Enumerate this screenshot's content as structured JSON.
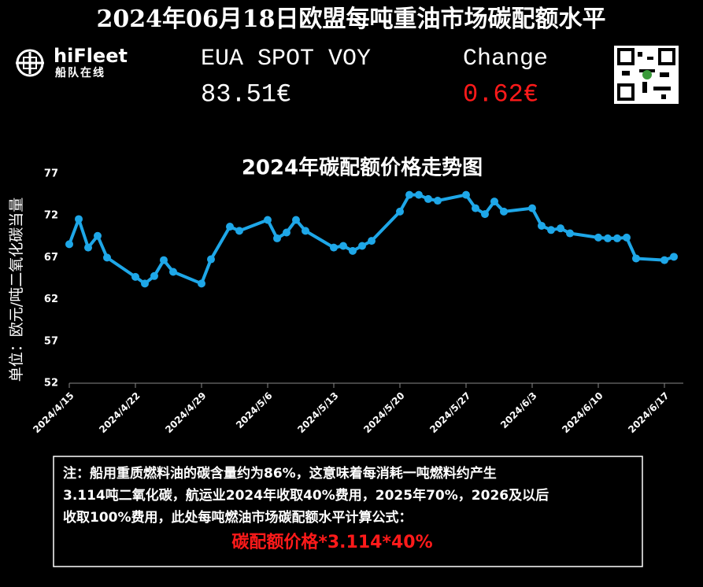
{
  "header": {
    "title": "2024年06月18日欧盟每吨重油市场碳配额水平",
    "logo_name": "hiFleet",
    "logo_sub": "船队在线",
    "price_label": "EUA SPOT VOY",
    "price": "83.51€",
    "change_label": "Change",
    "change": "0.62€"
  },
  "chart_data": {
    "type": "line",
    "title": "2024年碳配额价格走势图",
    "y_label": "单位：欧元/吨二氧化碳当量",
    "x": [
      "2024-04-15",
      "2024-04-16",
      "2024-04-17",
      "2024-04-18",
      "2024-04-19",
      "2024-04-22",
      "2024-04-23",
      "2024-04-24",
      "2024-04-25",
      "2024-04-26",
      "2024-04-29",
      "2024-04-30",
      "2024-05-02",
      "2024-05-03",
      "2024-05-06",
      "2024-05-07",
      "2024-05-08",
      "2024-05-09",
      "2024-05-10",
      "2024-05-13",
      "2024-05-14",
      "2024-05-15",
      "2024-05-16",
      "2024-05-17",
      "2024-05-20",
      "2024-05-21",
      "2024-05-22",
      "2024-05-23",
      "2024-05-24",
      "2024-05-27",
      "2024-05-28",
      "2024-05-29",
      "2024-05-30",
      "2024-05-31",
      "2024-06-03",
      "2024-06-04",
      "2024-06-05",
      "2024-06-06",
      "2024-06-07",
      "2024-06-10",
      "2024-06-11",
      "2024-06-12",
      "2024-06-13",
      "2024-06-14",
      "2024-06-17",
      "2024-06-18"
    ],
    "values": [
      68.6,
      71.6,
      68.2,
      69.6,
      67.0,
      64.7,
      63.9,
      64.8,
      66.7,
      65.3,
      63.9,
      66.8,
      70.7,
      70.2,
      71.5,
      69.3,
      70.0,
      71.5,
      70.2,
      68.2,
      68.4,
      67.8,
      68.4,
      69.0,
      72.5,
      74.5,
      74.5,
      74.0,
      73.8,
      74.5,
      72.9,
      72.2,
      73.7,
      72.5,
      72.9,
      70.8,
      70.3,
      70.5,
      69.9,
      69.4,
      69.3,
      69.3,
      69.4,
      66.9,
      66.7,
      67.1
    ],
    "color": "#1ea7e8",
    "xlim": [
      "2024-04-15",
      "2024-06-19"
    ],
    "xticks": [
      {
        "value": "2024-04-15",
        "label": "2024/4/15"
      },
      {
        "value": "2024-04-22",
        "label": "2024/4/22"
      },
      {
        "value": "2024-04-29",
        "label": "2024/4/29"
      },
      {
        "value": "2024-05-06",
        "label": "2024/5/6"
      },
      {
        "value": "2024-05-13",
        "label": "2024/5/13"
      },
      {
        "value": "2024-05-20",
        "label": "2024/5/20"
      },
      {
        "value": "2024-05-27",
        "label": "2024/5/27"
      },
      {
        "value": "2024-06-03",
        "label": "2024/6/3"
      },
      {
        "value": "2024-06-10",
        "label": "2024/6/10"
      },
      {
        "value": "2024-06-17",
        "label": "2024/6/17"
      }
    ],
    "ylim": [
      52,
      77
    ],
    "yticks": [
      52,
      57,
      62,
      67,
      72,
      77
    ],
    "grid": false
  },
  "note": {
    "lines": [
      "注：船用重质燃料油的碳含量约为86%，这意味着每消耗一吨燃料约产生",
      "3.114吨二氧化碳，航运业2024年收取40%费用，2025年70%，2026及以后",
      "收取100%费用，此处每吨燃油市场碳配额水平计算公式："
    ],
    "formula": "碳配额价格*3.114*40%"
  }
}
